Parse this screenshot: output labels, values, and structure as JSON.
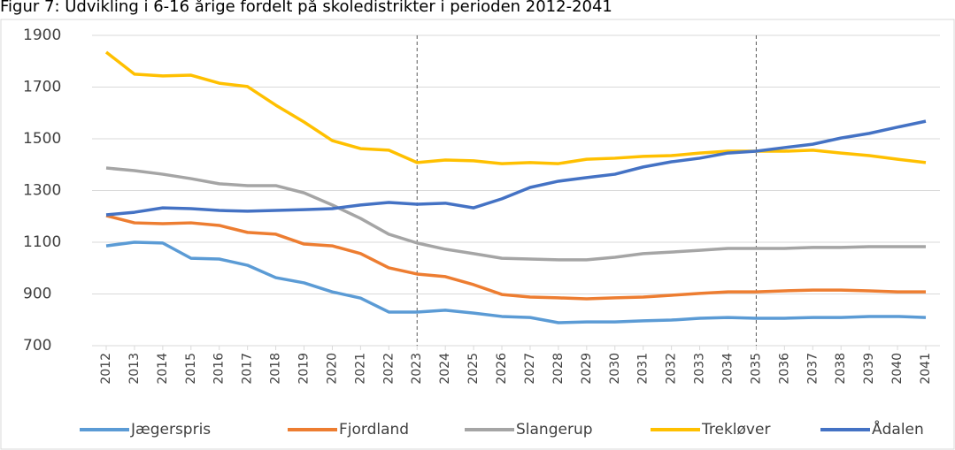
{
  "chart_data": {
    "type": "line",
    "title": "Figur 7: Udvikling i 6-16 årige fordelt på skoledistrikter i perioden 2012-2041",
    "x": [
      2012,
      2013,
      2014,
      2015,
      2016,
      2017,
      2018,
      2019,
      2020,
      2021,
      2022,
      2023,
      2024,
      2025,
      2026,
      2027,
      2028,
      2029,
      2030,
      2031,
      2032,
      2033,
      2034,
      2035,
      2036,
      2037,
      2038,
      2039,
      2040,
      2041
    ],
    "xlim": [
      2012,
      2041
    ],
    "vlines": [
      2023,
      2035
    ],
    "ylim": [
      700,
      1900
    ],
    "yticks": [
      700,
      900,
      1100,
      1300,
      1500,
      1700,
      1900
    ],
    "grid": true,
    "legend": "bottom",
    "series": [
      {
        "name": "Jægerspris",
        "color": "#5b9bd5",
        "values": [
          1086,
          1100,
          1097,
          1038,
          1035,
          1011,
          963,
          943,
          908,
          884,
          830,
          830,
          837,
          826,
          813,
          809,
          789,
          792,
          792,
          796,
          799,
          806,
          809,
          806,
          806,
          809,
          809,
          813,
          813,
          809
        ]
      },
      {
        "name": "Fjordland",
        "color": "#ed7d31",
        "values": [
          1203,
          1175,
          1172,
          1175,
          1165,
          1138,
          1131,
          1093,
          1086,
          1056,
          1001,
          977,
          967,
          936,
          898,
          888,
          885,
          881,
          885,
          888,
          895,
          902,
          908,
          908,
          912,
          915,
          915,
          912,
          908,
          908
        ]
      },
      {
        "name": "Slangerup",
        "color": "#a5a5a5",
        "values": [
          1387,
          1377,
          1363,
          1346,
          1326,
          1319,
          1319,
          1291,
          1244,
          1192,
          1131,
          1097,
          1073,
          1056,
          1038,
          1035,
          1032,
          1032,
          1042,
          1056,
          1062,
          1069,
          1076,
          1076,
          1076,
          1080,
          1080,
          1083,
          1083,
          1083
        ]
      },
      {
        "name": "Trekløver",
        "color": "#ffc000",
        "values": [
          1835,
          1750,
          1743,
          1746,
          1715,
          1702,
          1630,
          1565,
          1493,
          1462,
          1456,
          1408,
          1418,
          1415,
          1404,
          1408,
          1404,
          1421,
          1425,
          1432,
          1435,
          1445,
          1452,
          1452,
          1452,
          1456,
          1445,
          1435,
          1421,
          1408
        ]
      },
      {
        "name": "Ådalen",
        "color": "#4472c4",
        "values": [
          1206,
          1216,
          1233,
          1230,
          1223,
          1220,
          1223,
          1226,
          1230,
          1244,
          1254,
          1247,
          1251,
          1233,
          1268,
          1312,
          1336,
          1350,
          1363,
          1391,
          1411,
          1425,
          1445,
          1452,
          1466,
          1479,
          1503,
          1521,
          1545,
          1568
        ]
      }
    ]
  }
}
